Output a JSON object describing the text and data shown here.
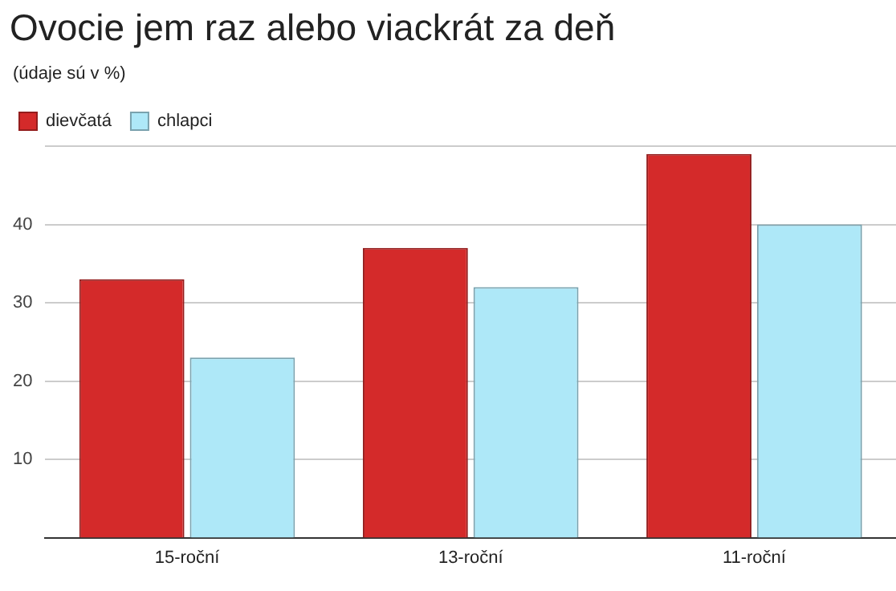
{
  "chart_data": {
    "type": "bar",
    "title": "Ovocie jem raz alebo viackrát za deň",
    "subtitle": "(údaje sú v %)",
    "categories": [
      "15-roční",
      "13-roční",
      "11-roční"
    ],
    "series": [
      {
        "name": "dievčatá",
        "color": "#d42a2a",
        "values": [
          33,
          37,
          49
        ]
      },
      {
        "name": "chlapci",
        "color": "#aee8f8",
        "values": [
          23,
          32,
          40
        ]
      }
    ],
    "ylim": [
      0,
      50
    ],
    "yticks": [
      10,
      20,
      30,
      40,
      {
        "value": 50,
        "label": null
      }
    ],
    "grid": "y",
    "legend": "top left"
  }
}
